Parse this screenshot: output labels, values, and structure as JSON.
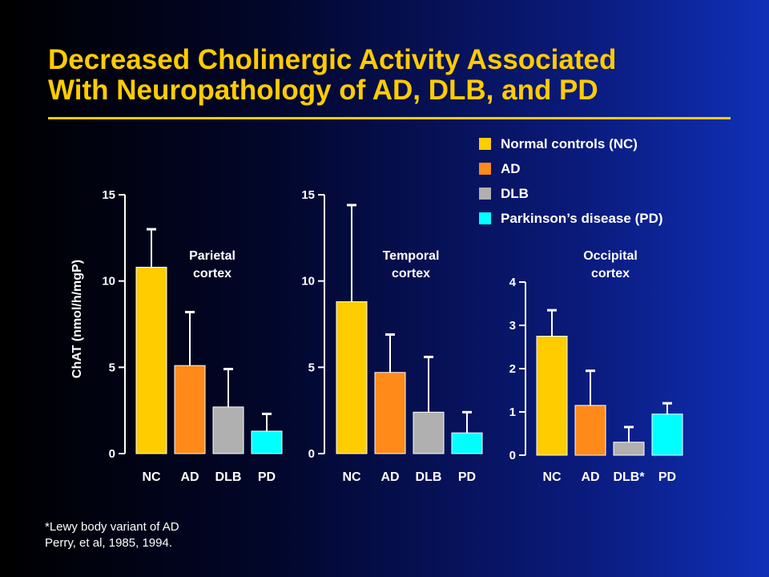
{
  "title_line1": "Decreased Cholinergic Activity Associated",
  "title_line2": "With Neuropathology of AD, DLB, and PD",
  "legend": [
    {
      "label": "Normal controls (NC)",
      "color": "#ffcc00"
    },
    {
      "label": "AD",
      "color": "#ff8a1a"
    },
    {
      "label": "DLB",
      "color": "#b0b0b0"
    },
    {
      "label": "Parkinson’s  disease (PD)",
      "color": "#00ffff"
    }
  ],
  "footnote_line1": "*Lewy body variant of AD",
  "footnote_line2": "Perry, et al, 1985, 1994.",
  "ylabel": "ChAT (nmol/h/mgP)",
  "colors": {
    "NC": "#ffcc00",
    "AD": "#ff8a1a",
    "DLB": "#b0b0b0",
    "PD": "#00ffff",
    "title": "#ffcc00"
  },
  "chart_data": [
    {
      "type": "bar",
      "panel_label": [
        "Parietal",
        "cortex"
      ],
      "categories": [
        "NC",
        "AD",
        "DLB",
        "PD"
      ],
      "values": [
        10.8,
        5.1,
        2.7,
        1.3
      ],
      "error_upper": [
        13.0,
        8.2,
        4.9,
        2.3
      ],
      "ylim": [
        0,
        15
      ],
      "yticks": [
        "0",
        "5",
        "10",
        "15"
      ],
      "ytick_values": [
        0,
        5,
        10,
        15
      ]
    },
    {
      "type": "bar",
      "panel_label": [
        "Temporal",
        "cortex"
      ],
      "categories": [
        "NC",
        "AD",
        "DLB",
        "PD"
      ],
      "values": [
        8.8,
        4.7,
        2.4,
        1.2
      ],
      "error_upper": [
        14.4,
        6.9,
        5.6,
        2.4
      ],
      "ylim": [
        0,
        15
      ],
      "yticks": [
        "0",
        "5",
        "10",
        "15"
      ],
      "ytick_values": [
        0,
        5,
        10,
        15
      ]
    },
    {
      "type": "bar",
      "panel_label": [
        "Occipital",
        "cortex"
      ],
      "categories": [
        "NC",
        "AD",
        "DLB*",
        "PD"
      ],
      "values": [
        2.75,
        1.15,
        0.3,
        0.95
      ],
      "error_upper": [
        3.35,
        1.95,
        0.65,
        1.2
      ],
      "ylim": [
        0,
        4
      ],
      "yticks": [
        "0",
        "1",
        "2",
        "3",
        "4"
      ],
      "ytick_values": [
        0,
        1,
        2,
        3,
        4
      ]
    }
  ]
}
